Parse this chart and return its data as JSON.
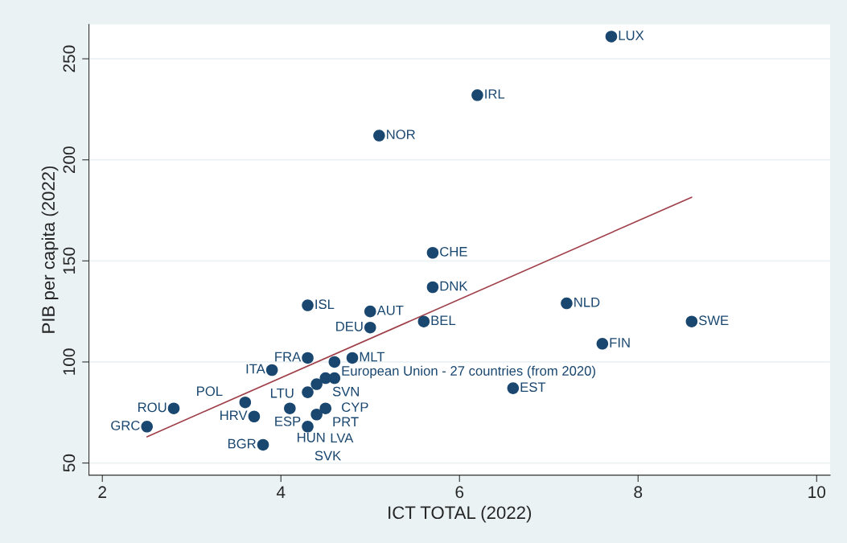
{
  "chart_data": {
    "type": "scatter",
    "xlabel": "ICT TOTAL (2022)",
    "ylabel": "PIB per capita (2022)",
    "xlim": [
      1.85,
      10.15
    ],
    "ylim": [
      44,
      267
    ],
    "xticks": [
      2,
      4,
      6,
      8,
      10
    ],
    "yticks": [
      50,
      100,
      150,
      200,
      250
    ],
    "grid": "y",
    "series": [
      {
        "type": "scatter",
        "marker": "circle",
        "color": "#1a476f",
        "x": [
          7.7,
          6.2,
          5.1,
          5.7,
          5.7,
          4.3,
          5.0,
          7.2,
          5.6,
          8.6,
          5.0,
          7.6,
          4.3,
          4.8,
          4.6,
          3.9,
          6.6,
          4.5,
          4.6,
          4.4,
          4.3,
          3.6,
          2.8,
          4.1,
          4.5,
          4.4,
          3.7,
          2.5,
          4.3,
          3.8
        ],
        "values": [
          261,
          232,
          212,
          154,
          137,
          128,
          125,
          129,
          120,
          120,
          117,
          109,
          102,
          102,
          100,
          96,
          87,
          92,
          92,
          89,
          85,
          80,
          77,
          77,
          77,
          74,
          73,
          68,
          68,
          59
        ]
      },
      {
        "type": "line",
        "color": "#a0404a",
        "x": [
          2.5,
          8.6
        ],
        "values": [
          63,
          181.5
        ]
      }
    ],
    "annotations": [
      {
        "text": "LUX",
        "x": 7.7,
        "y": 261
      },
      {
        "text": "IRL",
        "x": 6.2,
        "y": 232
      },
      {
        "text": "NOR",
        "x": 5.1,
        "y": 212
      },
      {
        "text": "CHE",
        "x": 5.7,
        "y": 154
      },
      {
        "text": "DNK",
        "x": 5.7,
        "y": 137
      },
      {
        "text": "ISL",
        "x": 4.3,
        "y": 128
      },
      {
        "text": "AUT",
        "x": 5.0,
        "y": 125
      },
      {
        "text": "NLD",
        "x": 7.2,
        "y": 129
      },
      {
        "text": "BEL",
        "x": 5.6,
        "y": 120
      },
      {
        "text": "SWE",
        "x": 8.6,
        "y": 120
      },
      {
        "text": "DEU",
        "x": 5.0,
        "y": 117
      },
      {
        "text": "FIN",
        "x": 7.6,
        "y": 109
      },
      {
        "text": "FRA",
        "x": 4.3,
        "y": 102
      },
      {
        "text": "MLT",
        "x": 4.8,
        "y": 102
      },
      {
        "text": "European Union - 27 countries (from 2020)",
        "x": 4.6,
        "y": 100
      },
      {
        "text": "ITA",
        "x": 3.9,
        "y": 96
      },
      {
        "text": "EST",
        "x": 6.6,
        "y": 87
      },
      {
        "text": "SVN",
        "x": 4.5,
        "y": 92
      },
      {
        "text": "CYP",
        "x": 4.6,
        "y": 92
      },
      {
        "text": "LTU",
        "x": 4.4,
        "y": 89
      },
      {
        "text": "ESP",
        "x": 4.3,
        "y": 85
      },
      {
        "text": "POL",
        "x": 3.6,
        "y": 80
      },
      {
        "text": "ROU",
        "x": 2.8,
        "y": 77
      },
      {
        "text": "HUN",
        "x": 4.1,
        "y": 77
      },
      {
        "text": "PRT",
        "x": 4.5,
        "y": 77
      },
      {
        "text": "LVA",
        "x": 4.4,
        "y": 74
      },
      {
        "text": "HRV",
        "x": 3.7,
        "y": 73
      },
      {
        "text": "GRC",
        "x": 2.5,
        "y": 68
      },
      {
        "text": "SVK",
        "x": 4.3,
        "y": 68
      },
      {
        "text": "BGR",
        "x": 3.8,
        "y": 59
      }
    ]
  }
}
